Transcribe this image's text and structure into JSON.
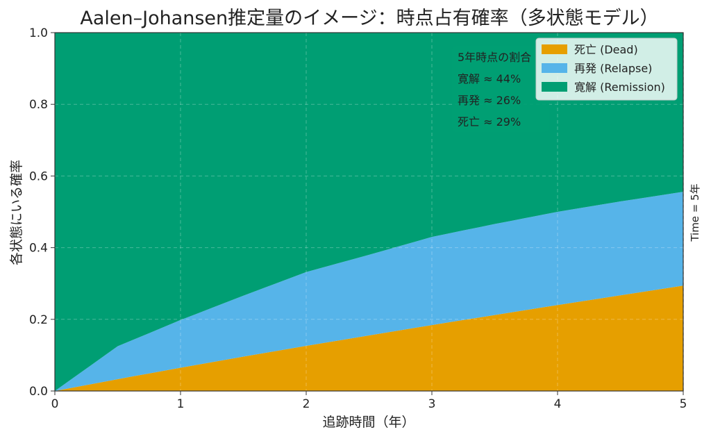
{
  "chart_data": {
    "type": "area",
    "title": "Aalen–Johansen推定量のイメージ：時点占有確率（多状態モデル）",
    "xlabel": "追跡時間（年）",
    "ylabel": "各状態にいる確率",
    "xlim": [
      0,
      5
    ],
    "ylim": [
      0,
      1
    ],
    "x_ticks": [
      "0",
      "1",
      "2",
      "3",
      "4",
      "5"
    ],
    "y_ticks": [
      "0.0",
      "0.2",
      "0.4",
      "0.6",
      "0.8",
      "1.0"
    ],
    "grid": true,
    "stacked": true,
    "x": [
      0,
      0.5,
      1,
      1.5,
      2,
      2.5,
      3,
      3.5,
      4,
      4.5,
      5
    ],
    "series": [
      {
        "name": "死亡 (Dead)",
        "color": "#E69F00",
        "values": [
          0,
          0.033,
          0.065,
          0.096,
          0.126,
          0.155,
          0.184,
          0.212,
          0.24,
          0.267,
          0.294
        ]
      },
      {
        "name": "再発 (Relapse)",
        "color": "#56B4E9",
        "values": [
          0,
          0.092,
          0.133,
          0.17,
          0.206,
          0.225,
          0.246,
          0.254,
          0.26,
          0.262,
          0.262
        ]
      },
      {
        "name": "寛解 (Remission)",
        "color": "#009E73",
        "values": [
          1,
          0.875,
          0.802,
          0.734,
          0.668,
          0.62,
          0.57,
          0.534,
          0.5,
          0.471,
          0.444
        ]
      }
    ],
    "legend_position": "top-right",
    "vertical_line": {
      "x": 5,
      "label": "Time = 5年"
    },
    "annotation": {
      "heading": "5年時点の割合",
      "lines": [
        "寛解 ≈ 44%",
        "再発 ≈ 26%",
        "死亡 ≈ 29%"
      ]
    }
  }
}
